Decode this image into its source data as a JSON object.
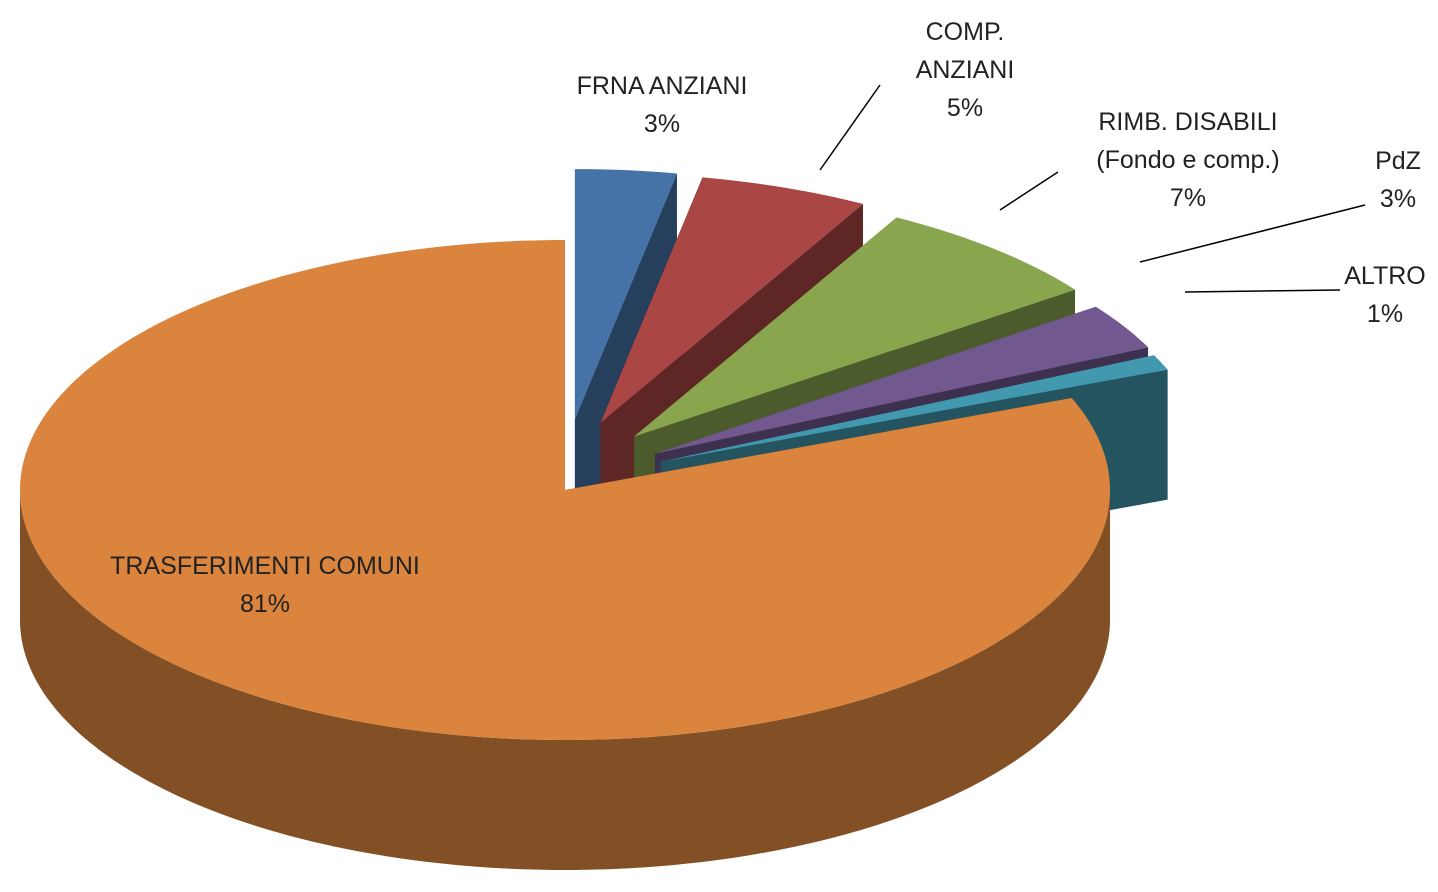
{
  "chart_data": {
    "type": "pie",
    "categories": [
      "FRNA ANZIANI",
      "COMP.\nANZIANI",
      "RIMB. DISABILI\n(Fondo e comp.)",
      "PdZ",
      "ALTRO",
      "TRASFERIMENTI  COMUNI"
    ],
    "values": [
      3,
      5,
      7,
      3,
      1,
      81
    ],
    "value_labels": [
      "3%",
      "5%",
      "7%",
      "3%",
      "1%",
      "81%"
    ],
    "colors": [
      "#4572a7",
      "#aa4643",
      "#89a54e",
      "#71588f",
      "#4198af",
      "#db843d"
    ]
  }
}
